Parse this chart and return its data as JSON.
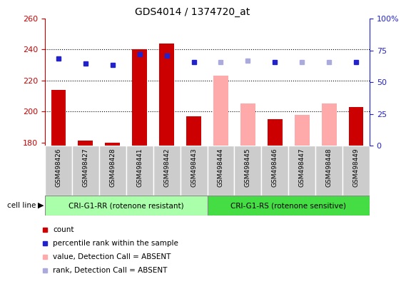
{
  "title": "GDS4014 / 1374720_at",
  "samples": [
    "GSM498426",
    "GSM498427",
    "GSM498428",
    "GSM498441",
    "GSM498442",
    "GSM498443",
    "GSM498444",
    "GSM498445",
    "GSM498446",
    "GSM498447",
    "GSM498448",
    "GSM498449"
  ],
  "count_values": [
    214,
    181,
    180,
    240,
    244,
    197,
    null,
    null,
    195,
    null,
    null,
    203
  ],
  "absent_values": [
    null,
    null,
    null,
    null,
    null,
    null,
    223,
    205,
    null,
    198,
    205,
    null
  ],
  "rank_present_values": [
    234,
    231,
    230,
    237,
    236,
    232,
    null,
    null,
    232,
    null,
    null,
    232
  ],
  "rank_absent_values": [
    null,
    null,
    null,
    null,
    null,
    null,
    232,
    233,
    null,
    232,
    232,
    null
  ],
  "ylim_left": [
    178,
    260
  ],
  "ylim_right": [
    0,
    100
  ],
  "yticks_left": [
    180,
    200,
    220,
    240,
    260
  ],
  "yticks_right": [
    0,
    25,
    50,
    75,
    100
  ],
  "group1_label": "CRI-G1-RR (rotenone resistant)",
  "group2_label": "CRI-G1-RS (rotenone sensitive)",
  "group1_count": 6,
  "group2_count": 6,
  "color_count": "#cc0000",
  "color_absent": "#ffaaaa",
  "color_rank_present": "#2222cc",
  "color_rank_absent": "#aaaadd",
  "color_ylabel_left": "#cc0000",
  "color_ylabel_right": "#2222cc",
  "group1_color": "#aaffaa",
  "group2_color": "#44dd44",
  "sample_box_color": "#cccccc",
  "dotted_yticks": [
    200,
    220,
    240
  ],
  "legend_items": [
    {
      "color": "#cc0000",
      "label": "count"
    },
    {
      "color": "#2222cc",
      "label": "percentile rank within the sample"
    },
    {
      "color": "#ffaaaa",
      "label": "value, Detection Call = ABSENT"
    },
    {
      "color": "#aaaadd",
      "label": "rank, Detection Call = ABSENT"
    }
  ]
}
